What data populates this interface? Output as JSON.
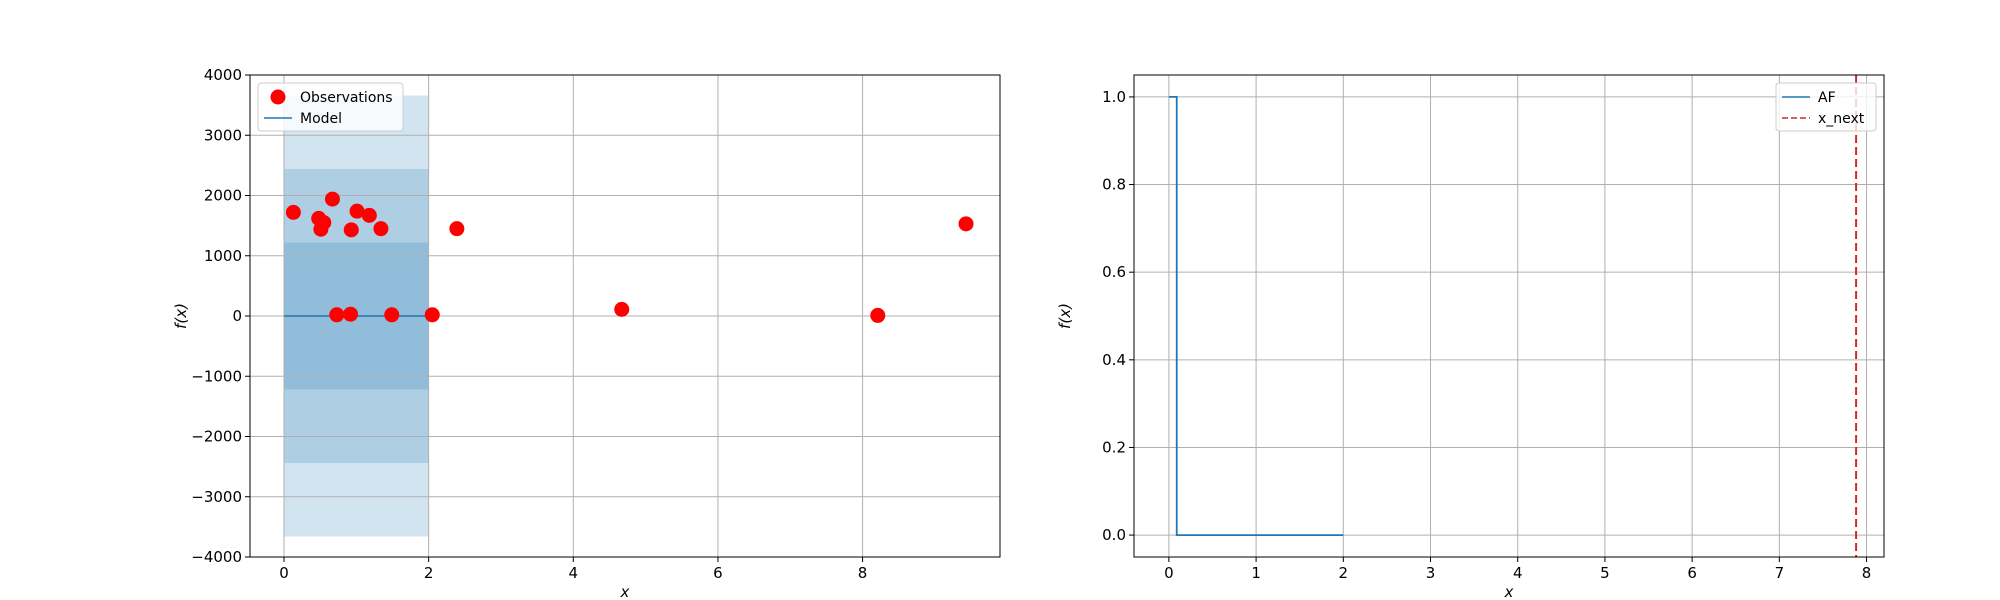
{
  "chart_data": [
    {
      "type": "scatter",
      "xlabel": "x",
      "ylabel": "f(x)",
      "xlim": [
        -0.47,
        9.9
      ],
      "ylim": [
        -4000,
        4000
      ],
      "xticks": [
        0,
        2,
        4,
        6,
        8
      ],
      "yticks": [
        -4000,
        -3000,
        -2000,
        -1000,
        0,
        1000,
        2000,
        3000,
        4000
      ],
      "grid": true,
      "legend": {
        "placement": "top-left",
        "entries": [
          "Observations",
          "Model"
        ]
      },
      "colors": {
        "observations": "#ff0000",
        "model": "#1f77b4"
      },
      "observations": {
        "name": "Observations",
        "points": [
          [
            0.13,
            1720
          ],
          [
            0.48,
            1620
          ],
          [
            0.55,
            1550
          ],
          [
            0.51,
            1440
          ],
          [
            0.67,
            1940
          ],
          [
            1.01,
            1740
          ],
          [
            1.18,
            1670
          ],
          [
            0.93,
            1430
          ],
          [
            1.34,
            1450
          ],
          [
            2.39,
            1450
          ],
          [
            9.43,
            1530
          ],
          [
            0.73,
            20
          ],
          [
            0.92,
            30
          ],
          [
            1.49,
            20
          ],
          [
            2.05,
            20
          ],
          [
            4.67,
            110
          ],
          [
            8.21,
            10
          ]
        ]
      },
      "model": {
        "name": "Model",
        "x": [
          0,
          2
        ],
        "mean": [
          0,
          0
        ],
        "bands": [
          {
            "lower": -1220,
            "upper": 1220
          },
          {
            "lower": -2440,
            "upper": 2440
          },
          {
            "lower": -3660,
            "upper": 3660
          }
        ]
      }
    },
    {
      "type": "line",
      "xlabel": "x",
      "ylabel": "f(x)",
      "xlim": [
        -0.4,
        8.2
      ],
      "ylim": [
        -0.05,
        1.05
      ],
      "xticks": [
        0,
        1,
        2,
        3,
        4,
        5,
        6,
        7,
        8
      ],
      "yticks": [
        0.0,
        0.2,
        0.4,
        0.6,
        0.8,
        1.0
      ],
      "grid": true,
      "legend": {
        "placement": "top-right",
        "entries": [
          "AF",
          "x_next"
        ]
      },
      "colors": {
        "af": "#1f77b4",
        "x_next": "#d62728"
      },
      "series": [
        {
          "name": "AF",
          "x": [
            0,
            0.09,
            0.09,
            2.0
          ],
          "y": [
            1.0,
            1.0,
            0.0,
            0.0
          ]
        }
      ],
      "x_next": {
        "name": "x_next",
        "x": 7.88
      }
    }
  ]
}
